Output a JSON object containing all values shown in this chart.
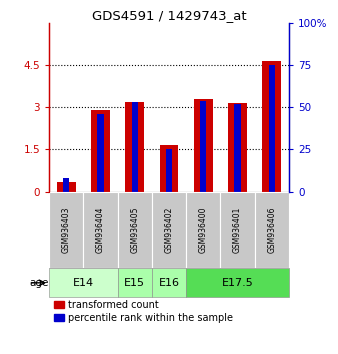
{
  "title": "GDS4591 / 1429743_at",
  "samples": [
    "GSM936403",
    "GSM936404",
    "GSM936405",
    "GSM936402",
    "GSM936400",
    "GSM936401",
    "GSM936406"
  ],
  "transformed_counts": [
    0.35,
    2.9,
    3.2,
    1.65,
    3.3,
    3.15,
    4.65
  ],
  "percentile_ranks": [
    8,
    46,
    53,
    25,
    54,
    52,
    75
  ],
  "age_groups": [
    {
      "label": "E14",
      "spans": [
        0,
        1
      ],
      "color": "#ccffcc"
    },
    {
      "label": "E15",
      "spans": [
        2
      ],
      "color": "#aaffaa"
    },
    {
      "label": "E16",
      "spans": [
        3
      ],
      "color": "#aaffaa"
    },
    {
      "label": "E17.5",
      "spans": [
        4,
        5,
        6
      ],
      "color": "#55dd55"
    }
  ],
  "bar_color_red": "#cc0000",
  "bar_color_blue": "#0000cc",
  "ylim_left": [
    0,
    6
  ],
  "ylim_right": [
    0,
    100
  ],
  "yticks_left": [
    0,
    1.5,
    3.0,
    4.5
  ],
  "yticks_right": [
    0,
    25,
    50,
    75,
    100
  ],
  "ytick_labels_left": [
    "0",
    "1.5",
    "3",
    "4.5"
  ],
  "ytick_labels_right": [
    "0",
    "25",
    "50",
    "75",
    "100%"
  ],
  "grid_yticks": [
    1.5,
    3.0,
    4.5
  ],
  "background_color": "#ffffff",
  "red_bar_width": 0.55,
  "blue_bar_width": 0.18,
  "sample_bg_color": "#c8c8c8"
}
